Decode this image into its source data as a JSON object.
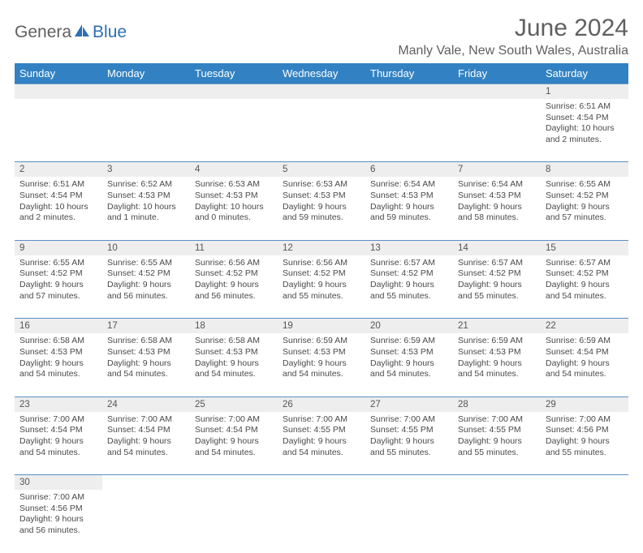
{
  "logo": {
    "part1": "Genera",
    "part2": "Blue",
    "icon_color": "#2d6fb5"
  },
  "title": "June 2024",
  "location": "Manly Vale, New South Wales, Australia",
  "colors": {
    "header_bg": "#3282c3",
    "header_text": "#ffffff",
    "daynum_bg": "#eeeeee",
    "border": "#5a8fc0",
    "text": "#4a4a4a"
  },
  "weekdays": [
    "Sunday",
    "Monday",
    "Tuesday",
    "Wednesday",
    "Thursday",
    "Friday",
    "Saturday"
  ],
  "weeks": [
    [
      null,
      null,
      null,
      null,
      null,
      null,
      {
        "n": "1",
        "sr": "Sunrise: 6:51 AM",
        "ss": "Sunset: 4:54 PM",
        "d1": "Daylight: 10 hours",
        "d2": "and 2 minutes."
      }
    ],
    [
      {
        "n": "2",
        "sr": "Sunrise: 6:51 AM",
        "ss": "Sunset: 4:54 PM",
        "d1": "Daylight: 10 hours",
        "d2": "and 2 minutes."
      },
      {
        "n": "3",
        "sr": "Sunrise: 6:52 AM",
        "ss": "Sunset: 4:53 PM",
        "d1": "Daylight: 10 hours",
        "d2": "and 1 minute."
      },
      {
        "n": "4",
        "sr": "Sunrise: 6:53 AM",
        "ss": "Sunset: 4:53 PM",
        "d1": "Daylight: 10 hours",
        "d2": "and 0 minutes."
      },
      {
        "n": "5",
        "sr": "Sunrise: 6:53 AM",
        "ss": "Sunset: 4:53 PM",
        "d1": "Daylight: 9 hours",
        "d2": "and 59 minutes."
      },
      {
        "n": "6",
        "sr": "Sunrise: 6:54 AM",
        "ss": "Sunset: 4:53 PM",
        "d1": "Daylight: 9 hours",
        "d2": "and 59 minutes."
      },
      {
        "n": "7",
        "sr": "Sunrise: 6:54 AM",
        "ss": "Sunset: 4:53 PM",
        "d1": "Daylight: 9 hours",
        "d2": "and 58 minutes."
      },
      {
        "n": "8",
        "sr": "Sunrise: 6:55 AM",
        "ss": "Sunset: 4:52 PM",
        "d1": "Daylight: 9 hours",
        "d2": "and 57 minutes."
      }
    ],
    [
      {
        "n": "9",
        "sr": "Sunrise: 6:55 AM",
        "ss": "Sunset: 4:52 PM",
        "d1": "Daylight: 9 hours",
        "d2": "and 57 minutes."
      },
      {
        "n": "10",
        "sr": "Sunrise: 6:55 AM",
        "ss": "Sunset: 4:52 PM",
        "d1": "Daylight: 9 hours",
        "d2": "and 56 minutes."
      },
      {
        "n": "11",
        "sr": "Sunrise: 6:56 AM",
        "ss": "Sunset: 4:52 PM",
        "d1": "Daylight: 9 hours",
        "d2": "and 56 minutes."
      },
      {
        "n": "12",
        "sr": "Sunrise: 6:56 AM",
        "ss": "Sunset: 4:52 PM",
        "d1": "Daylight: 9 hours",
        "d2": "and 55 minutes."
      },
      {
        "n": "13",
        "sr": "Sunrise: 6:57 AM",
        "ss": "Sunset: 4:52 PM",
        "d1": "Daylight: 9 hours",
        "d2": "and 55 minutes."
      },
      {
        "n": "14",
        "sr": "Sunrise: 6:57 AM",
        "ss": "Sunset: 4:52 PM",
        "d1": "Daylight: 9 hours",
        "d2": "and 55 minutes."
      },
      {
        "n": "15",
        "sr": "Sunrise: 6:57 AM",
        "ss": "Sunset: 4:52 PM",
        "d1": "Daylight: 9 hours",
        "d2": "and 54 minutes."
      }
    ],
    [
      {
        "n": "16",
        "sr": "Sunrise: 6:58 AM",
        "ss": "Sunset: 4:53 PM",
        "d1": "Daylight: 9 hours",
        "d2": "and 54 minutes."
      },
      {
        "n": "17",
        "sr": "Sunrise: 6:58 AM",
        "ss": "Sunset: 4:53 PM",
        "d1": "Daylight: 9 hours",
        "d2": "and 54 minutes."
      },
      {
        "n": "18",
        "sr": "Sunrise: 6:58 AM",
        "ss": "Sunset: 4:53 PM",
        "d1": "Daylight: 9 hours",
        "d2": "and 54 minutes."
      },
      {
        "n": "19",
        "sr": "Sunrise: 6:59 AM",
        "ss": "Sunset: 4:53 PM",
        "d1": "Daylight: 9 hours",
        "d2": "and 54 minutes."
      },
      {
        "n": "20",
        "sr": "Sunrise: 6:59 AM",
        "ss": "Sunset: 4:53 PM",
        "d1": "Daylight: 9 hours",
        "d2": "and 54 minutes."
      },
      {
        "n": "21",
        "sr": "Sunrise: 6:59 AM",
        "ss": "Sunset: 4:53 PM",
        "d1": "Daylight: 9 hours",
        "d2": "and 54 minutes."
      },
      {
        "n": "22",
        "sr": "Sunrise: 6:59 AM",
        "ss": "Sunset: 4:54 PM",
        "d1": "Daylight: 9 hours",
        "d2": "and 54 minutes."
      }
    ],
    [
      {
        "n": "23",
        "sr": "Sunrise: 7:00 AM",
        "ss": "Sunset: 4:54 PM",
        "d1": "Daylight: 9 hours",
        "d2": "and 54 minutes."
      },
      {
        "n": "24",
        "sr": "Sunrise: 7:00 AM",
        "ss": "Sunset: 4:54 PM",
        "d1": "Daylight: 9 hours",
        "d2": "and 54 minutes."
      },
      {
        "n": "25",
        "sr": "Sunrise: 7:00 AM",
        "ss": "Sunset: 4:54 PM",
        "d1": "Daylight: 9 hours",
        "d2": "and 54 minutes."
      },
      {
        "n": "26",
        "sr": "Sunrise: 7:00 AM",
        "ss": "Sunset: 4:55 PM",
        "d1": "Daylight: 9 hours",
        "d2": "and 54 minutes."
      },
      {
        "n": "27",
        "sr": "Sunrise: 7:00 AM",
        "ss": "Sunset: 4:55 PM",
        "d1": "Daylight: 9 hours",
        "d2": "and 55 minutes."
      },
      {
        "n": "28",
        "sr": "Sunrise: 7:00 AM",
        "ss": "Sunset: 4:55 PM",
        "d1": "Daylight: 9 hours",
        "d2": "and 55 minutes."
      },
      {
        "n": "29",
        "sr": "Sunrise: 7:00 AM",
        "ss": "Sunset: 4:56 PM",
        "d1": "Daylight: 9 hours",
        "d2": "and 55 minutes."
      }
    ],
    [
      {
        "n": "30",
        "sr": "Sunrise: 7:00 AM",
        "ss": "Sunset: 4:56 PM",
        "d1": "Daylight: 9 hours",
        "d2": "and 56 minutes."
      },
      null,
      null,
      null,
      null,
      null,
      null
    ]
  ]
}
